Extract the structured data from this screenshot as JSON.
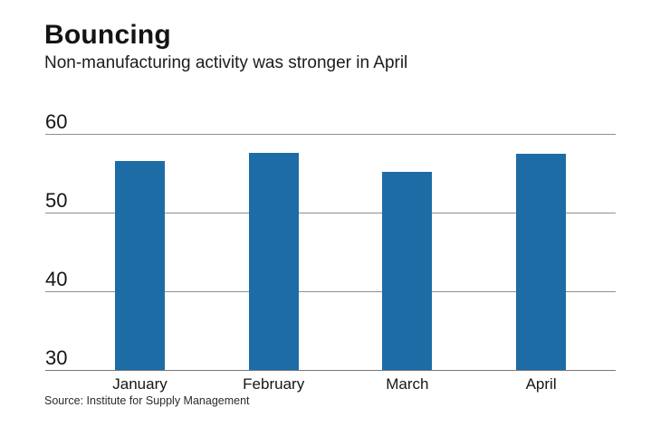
{
  "chart_data": {
    "type": "bar",
    "title": "Bouncing",
    "subtitle": "Non-manufacturing activity was stronger in April",
    "source": "Source: Institute for Supply Management",
    "categories": [
      "January",
      "February",
      "March",
      "April"
    ],
    "values": [
      56.5,
      57.6,
      55.2,
      57.5
    ],
    "xlabel": "",
    "ylabel": "",
    "ylim": [
      30,
      60
    ],
    "yticks": [
      60,
      50,
      40,
      30
    ],
    "grid": "on",
    "legend": "none",
    "bar_color": "#1d6ca5",
    "grid_color": "#8f8f8f",
    "text_color": "#161616"
  }
}
